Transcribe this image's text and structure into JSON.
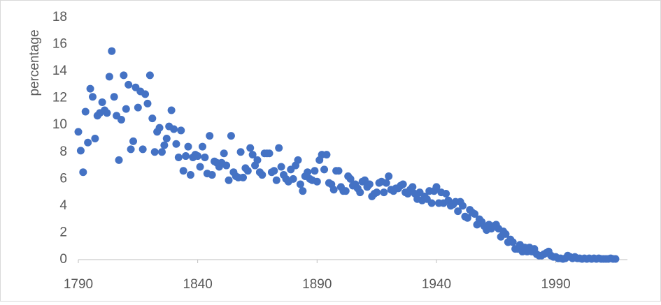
{
  "chart_data": {
    "type": "scatter",
    "y_label": "percentage",
    "color": "#4472c4",
    "xlim": [
      1790,
      2020
    ],
    "xticks": [
      1790,
      1840,
      1890,
      1940,
      1990
    ],
    "ylim": [
      0,
      18
    ],
    "yticks": [
      0,
      2,
      4,
      6,
      8,
      10,
      12,
      14,
      16,
      18
    ],
    "x": [
      1790,
      1791,
      1792,
      1793,
      1794,
      1795,
      1796,
      1797,
      1798,
      1799,
      1800,
      1801,
      1802,
      1803,
      1804,
      1805,
      1806,
      1807,
      1808,
      1809,
      1810,
      1811,
      1812,
      1813,
      1814,
      1815,
      1816,
      1817,
      1818,
      1819,
      1820,
      1821,
      1822,
      1823,
      1824,
      1825,
      1826,
      1827,
      1828,
      1829,
      1830,
      1831,
      1832,
      1833,
      1834,
      1835,
      1836,
      1837,
      1838,
      1839,
      1840,
      1841,
      1842,
      1843,
      1844,
      1845,
      1846,
      1847,
      1848,
      1849,
      1850,
      1851,
      1852,
      1853,
      1854,
      1855,
      1856,
      1857,
      1858,
      1859,
      1860,
      1861,
      1862,
      1863,
      1864,
      1865,
      1866,
      1867,
      1868,
      1869,
      1870,
      1871,
      1872,
      1873,
      1874,
      1875,
      1876,
      1877,
      1878,
      1879,
      1880,
      1881,
      1882,
      1883,
      1884,
      1885,
      1886,
      1887,
      1888,
      1889,
      1890,
      1891,
      1892,
      1893,
      1894,
      1895,
      1896,
      1897,
      1898,
      1899,
      1900,
      1901,
      1902,
      1903,
      1904,
      1905,
      1906,
      1907,
      1908,
      1909,
      1910,
      1911,
      1912,
      1913,
      1914,
      1915,
      1916,
      1917,
      1918,
      1919,
      1920,
      1921,
      1922,
      1923,
      1924,
      1925,
      1926,
      1927,
      1928,
      1929,
      1930,
      1931,
      1932,
      1933,
      1934,
      1935,
      1936,
      1937,
      1938,
      1939,
      1940,
      1941,
      1942,
      1943,
      1944,
      1945,
      1946,
      1947,
      1948,
      1949,
      1950,
      1951,
      1952,
      1953,
      1954,
      1955,
      1956,
      1957,
      1958,
      1959,
      1960,
      1961,
      1962,
      1963,
      1964,
      1965,
      1966,
      1967,
      1968,
      1969,
      1970,
      1971,
      1972,
      1973,
      1974,
      1975,
      1976,
      1977,
      1978,
      1979,
      1980,
      1981,
      1982,
      1983,
      1984,
      1985,
      1986,
      1987,
      1988,
      1989,
      1990,
      1991,
      1992,
      1993,
      1994,
      1995,
      1996,
      1997,
      1998,
      1999,
      2000,
      2001,
      2002,
      2003,
      2004,
      2005,
      2006,
      2007,
      2008,
      2009,
      2010,
      2011,
      2012,
      2013,
      2014,
      2015
    ],
    "values": [
      9.5,
      8.1,
      6.5,
      11.0,
      8.7,
      12.7,
      12.1,
      9.0,
      10.7,
      10.9,
      11.7,
      11.1,
      10.9,
      13.6,
      15.5,
      12.1,
      10.7,
      7.4,
      10.4,
      13.7,
      11.2,
      13.0,
      8.2,
      8.8,
      12.8,
      11.3,
      12.5,
      8.2,
      12.3,
      11.6,
      13.7,
      10.5,
      8.0,
      9.5,
      9.8,
      8.0,
      8.5,
      9.0,
      9.9,
      11.1,
      9.7,
      8.6,
      7.6,
      9.6,
      6.6,
      7.7,
      8.4,
      6.3,
      7.6,
      7.8,
      7.7,
      6.9,
      8.4,
      7.6,
      6.4,
      9.2,
      6.3,
      7.3,
      7.2,
      6.9,
      7.2,
      7.9,
      7.0,
      5.9,
      9.2,
      6.5,
      6.2,
      6.1,
      8.0,
      6.1,
      6.8,
      6.6,
      8.3,
      7.8,
      7.0,
      7.4,
      6.5,
      6.3,
      7.9,
      7.9,
      7.9,
      6.5,
      6.6,
      5.9,
      8.3,
      6.9,
      6.3,
      6.0,
      5.8,
      6.7,
      6.0,
      7.0,
      7.4,
      5.6,
      5.1,
      6.2,
      6.5,
      6.0,
      5.9,
      6.6,
      5.8,
      7.4,
      7.8,
      6.7,
      7.8,
      5.7,
      5.6,
      5.2,
      6.6,
      6.6,
      5.4,
      5.1,
      5.1,
      6.2,
      6.0,
      5.5,
      5.6,
      5.3,
      5.0,
      5.8,
      5.9,
      5.4,
      5.6,
      4.7,
      4.9,
      5.0,
      5.7,
      5.8,
      5.0,
      5.7,
      6.2,
      5.2,
      5.1,
      5.3,
      5.3,
      5.5,
      5.6,
      5.0,
      4.9,
      5.2,
      5.4,
      4.9,
      4.5,
      5.0,
      4.4,
      4.7,
      4.5,
      5.1,
      4.2,
      5.1,
      5.4,
      4.2,
      5.0,
      4.2,
      4.9,
      4.4,
      4.0,
      4.1,
      4.3,
      3.6,
      4.3,
      4.0,
      3.2,
      3.1,
      3.7,
      3.5,
      3.4,
      2.6,
      3.0,
      2.8,
      2.5,
      2.2,
      2.6,
      2.3,
      2.5,
      2.6,
      2.3,
      1.7,
      2.1,
      1.9,
      1.3,
      1.5,
      1.3,
      0.8,
      0.8,
      1.1,
      0.6,
      0.9,
      0.6,
      0.9,
      0.6,
      0.8,
      0.4,
      0.3,
      0.3,
      0.4,
      0.5,
      0.6,
      0.3,
      0.2,
      0.2,
      0.1,
      0.1,
      0.05,
      0.1,
      0.3,
      0.2,
      0.1,
      0.2,
      0.1,
      0.1,
      0.05,
      0.1,
      0.05,
      0.1,
      0.05,
      0.1,
      0.05,
      0.1,
      0.05,
      0.05,
      0.05,
      0.05,
      0.1,
      0.05,
      0.05
    ]
  }
}
